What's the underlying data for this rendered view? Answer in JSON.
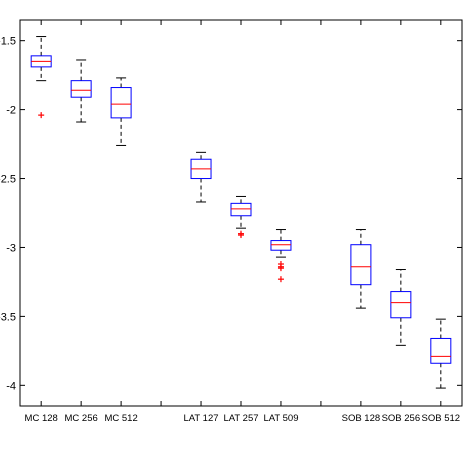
{
  "chart_data": {
    "type": "boxplot",
    "title": "",
    "xlabel": "",
    "ylabel": "",
    "categories": [
      "MC 128",
      "MC 256",
      "MC 512",
      "",
      "LAT 127",
      "LAT 257",
      "LAT 509",
      "",
      "SOB 128",
      "SOB 256",
      "SOB 512"
    ],
    "ylim": [
      -4.15,
      -1.35
    ],
    "yticks": [
      -1.5,
      -2,
      -2.5,
      -3,
      -3.5,
      -4
    ],
    "ytick_labels": [
      "-1.5",
      "-2",
      "-2.5",
      "-3",
      "-3.5",
      "-4"
    ],
    "grid": false,
    "boxes": [
      {
        "label": "MC 128",
        "slot": 1,
        "whisker_high": -1.47,
        "q3": -1.61,
        "median": -1.65,
        "q1": -1.69,
        "whisker_low": -1.79,
        "outliers": [
          -2.04
        ]
      },
      {
        "label": "MC 256",
        "slot": 2,
        "whisker_high": -1.64,
        "q3": -1.79,
        "median": -1.86,
        "q1": -1.91,
        "whisker_low": -2.09,
        "outliers": []
      },
      {
        "label": "MC 512",
        "slot": 3,
        "whisker_high": -1.77,
        "q3": -1.84,
        "median": -1.96,
        "q1": -2.06,
        "whisker_low": -2.26,
        "outliers": []
      },
      {
        "label": "LAT 127",
        "slot": 5,
        "whisker_high": -2.31,
        "q3": -2.36,
        "median": -2.43,
        "q1": -2.5,
        "whisker_low": -2.67,
        "outliers": []
      },
      {
        "label": "LAT 257",
        "slot": 6,
        "whisker_high": -2.63,
        "q3": -2.68,
        "median": -2.72,
        "q1": -2.77,
        "whisker_low": -2.86,
        "outliers": [
          -2.9,
          -2.91
        ]
      },
      {
        "label": "LAT 509",
        "slot": 7,
        "whisker_high": -2.87,
        "q3": -2.95,
        "median": -2.98,
        "q1": -3.02,
        "whisker_low": -3.07,
        "outliers": [
          -3.12,
          -3.14,
          -3.15,
          -3.23
        ]
      },
      {
        "label": "SOB 128",
        "slot": 9,
        "whisker_high": -2.87,
        "q3": -2.98,
        "median": -3.14,
        "q1": -3.27,
        "whisker_low": -3.44,
        "outliers": []
      },
      {
        "label": "SOB 256",
        "slot": 10,
        "whisker_high": -3.16,
        "q3": -3.32,
        "median": -3.4,
        "q1": -3.51,
        "whisker_low": -3.71,
        "outliers": []
      },
      {
        "label": "SOB 512",
        "slot": 11,
        "whisker_high": -3.52,
        "q3": -3.66,
        "median": -3.79,
        "q1": -3.84,
        "whisker_low": -4.02,
        "outliers": []
      }
    ],
    "colors": {
      "box": "#0000ff",
      "median": "#ff0000",
      "whisker": "#000000",
      "outlier": "#ff0000",
      "axes": "#000000"
    }
  }
}
